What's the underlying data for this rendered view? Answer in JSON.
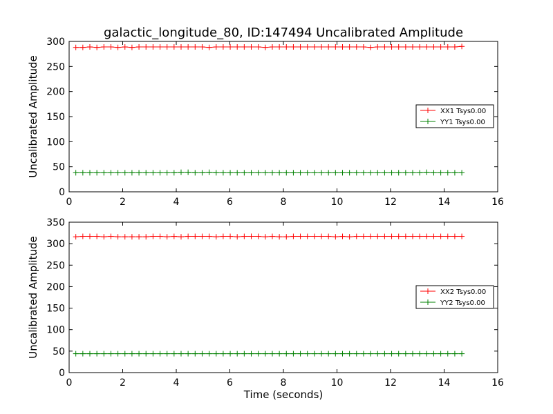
{
  "title": "galactic_longitude_80, ID:147494 Uncalibrated Amplitude",
  "chart_data": [
    {
      "type": "line",
      "title": "galactic_longitude_80, ID:147494 Uncalibrated Amplitude",
      "xlabel": "",
      "ylabel": "Uncalibrated Amplitude",
      "xlim": [
        0,
        16
      ],
      "ylim": [
        0,
        300
      ],
      "xticks": [
        "0",
        "2",
        "4",
        "6",
        "8",
        "10",
        "12",
        "14",
        "16"
      ],
      "yticks": [
        "0",
        "50",
        "100",
        "150",
        "200",
        "250",
        "300"
      ],
      "legend_position": "center-right",
      "series": [
        {
          "name": "XX1 Tsys0.00",
          "color": "#ff0000",
          "x_start": 0.25,
          "x_step": 0.262,
          "n": 56,
          "values": [
            288,
            288,
            289,
            288,
            289,
            289,
            288,
            289,
            288,
            289,
            289,
            289,
            289,
            289,
            289,
            289,
            289,
            289,
            289,
            288,
            289,
            289,
            289,
            289,
            289,
            289,
            289,
            288,
            289,
            289,
            289,
            289,
            289,
            289,
            289,
            289,
            289,
            289,
            289,
            289,
            289,
            289,
            288,
            289,
            289,
            289,
            289,
            289,
            289,
            289,
            289,
            289,
            289,
            289,
            289,
            290
          ]
        },
        {
          "name": "YY1 Tsys0.00",
          "color": "#008000",
          "x_start": 0.25,
          "x_step": 0.262,
          "n": 56,
          "values": [
            38,
            38,
            38,
            38,
            38,
            38,
            38,
            38,
            38,
            38,
            38,
            38,
            38,
            38,
            38,
            39,
            39,
            38,
            38,
            39,
            38,
            38,
            38,
            38,
            38,
            38,
            38,
            38,
            38,
            38,
            38,
            38,
            38,
            38,
            38,
            38,
            38,
            38,
            38,
            38,
            38,
            38,
            38,
            38,
            38,
            38,
            38,
            38,
            38,
            38,
            39,
            38,
            38,
            38,
            38,
            38
          ]
        }
      ]
    },
    {
      "type": "line",
      "title": "",
      "xlabel": "Time (seconds)",
      "ylabel": "Uncalibrated Amplitude",
      "xlim": [
        0,
        16
      ],
      "ylim": [
        0,
        350
      ],
      "xticks": [
        "0",
        "2",
        "4",
        "6",
        "8",
        "10",
        "12",
        "14",
        "16"
      ],
      "yticks": [
        "0",
        "50",
        "100",
        "150",
        "200",
        "250",
        "300",
        "350"
      ],
      "legend_position": "center-right",
      "series": [
        {
          "name": "XX2 Tsys0.00",
          "color": "#ff0000",
          "x_start": 0.25,
          "x_step": 0.262,
          "n": 56,
          "values": [
            316,
            317,
            317,
            317,
            316,
            317,
            316,
            316,
            316,
            316,
            316,
            317,
            317,
            316,
            317,
            316,
            317,
            317,
            317,
            317,
            316,
            317,
            317,
            316,
            317,
            317,
            317,
            316,
            317,
            316,
            316,
            317,
            317,
            317,
            317,
            317,
            317,
            316,
            317,
            316,
            317,
            317,
            317,
            317,
            317,
            317,
            317,
            317,
            317,
            317,
            317,
            317,
            317,
            317,
            317,
            317
          ]
        },
        {
          "name": "YY2 Tsys0.00",
          "color": "#008000",
          "x_start": 0.25,
          "x_step": 0.262,
          "n": 56,
          "values": [
            44,
            44,
            44,
            44,
            44,
            44,
            44,
            44,
            44,
            44,
            44,
            44,
            44,
            44,
            44,
            44,
            44,
            44,
            44,
            44,
            44,
            44,
            44,
            44,
            44,
            44,
            44,
            44,
            44,
            44,
            44,
            44,
            44,
            44,
            44,
            44,
            44,
            44,
            44,
            44,
            44,
            44,
            44,
            44,
            44,
            44,
            44,
            44,
            44,
            44,
            44,
            44,
            44,
            44,
            44,
            44
          ]
        }
      ]
    }
  ]
}
